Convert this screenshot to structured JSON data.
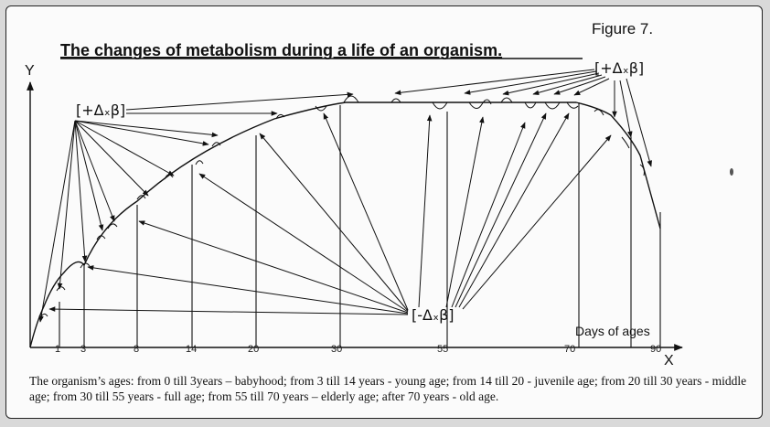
{
  "figure_label": "Figure 7.",
  "title": "The changes of metabolism during a life of an organism.",
  "y_axis_label": "Y",
  "x_axis_label": "X",
  "x_axis_unit": "Days of ages",
  "ticks": [
    "1",
    "3",
    "8",
    "14",
    "20",
    "30",
    "55",
    "70",
    "90"
  ],
  "label_plus_left": "[+Δₓβ]",
  "label_plus_right": "[+Δₓβ]",
  "label_minus": "[-Δₓβ]",
  "caption": "The organism’s ages: from 0 till 3years – babyhood; from 3 till 14 years - young age; from 14 till 20 - juvenile age; from 20 till 30 years - middle age; from 30 till 55 years - full age; from 55 till 70 years – elderly age; after 70 years - old age.",
  "colors": {
    "ink": "#111111",
    "paper": "#fbfbfb",
    "border": "#222222"
  }
}
